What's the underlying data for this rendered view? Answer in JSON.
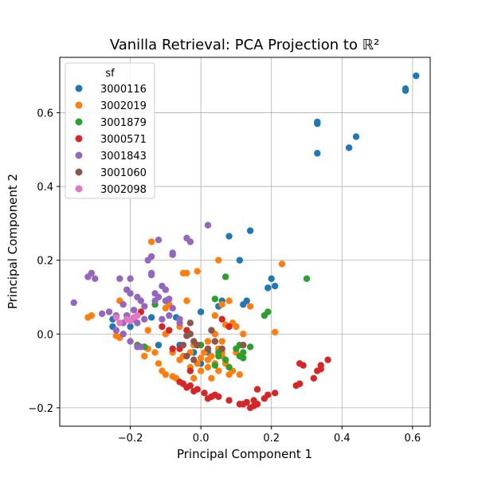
{
  "chart_data": {
    "type": "scatter",
    "title": "Vanilla Retrieval: PCA Projection to ℝ²",
    "xlabel": "Principal Component 1",
    "ylabel": "Principal Component 2",
    "xlim": [
      -0.4,
      0.65
    ],
    "ylim": [
      -0.25,
      0.75
    ],
    "xticks": [
      -0.2,
      0.0,
      0.2,
      0.4,
      0.6
    ],
    "xtick_labels": [
      "−0.2",
      "0.0",
      "0.2",
      "0.4",
      "0.6"
    ],
    "yticks": [
      -0.2,
      0.0,
      0.2,
      0.4,
      0.6
    ],
    "ytick_labels": [
      "−0.2",
      "0.0",
      "0.2",
      "0.4",
      "0.6"
    ],
    "grid": true,
    "legend": {
      "title": "sf",
      "placement": "top-left"
    },
    "series": [
      {
        "name": "3000116",
        "color": "#1f77b4",
        "points": [
          [
            0.61,
            0.7
          ],
          [
            0.58,
            0.665
          ],
          [
            0.58,
            0.66
          ],
          [
            0.33,
            0.57
          ],
          [
            0.33,
            0.575
          ],
          [
            0.44,
            0.535
          ],
          [
            0.42,
            0.505
          ],
          [
            0.33,
            0.49
          ],
          [
            0.14,
            0.28
          ],
          [
            0.08,
            0.265
          ],
          [
            0.11,
            0.2
          ],
          [
            0.2,
            0.15
          ],
          [
            0.21,
            0.13
          ],
          [
            0.19,
            0.125
          ],
          [
            0.06,
            0.09
          ],
          [
            0.13,
            0.09
          ],
          [
            0.05,
            0.075
          ],
          [
            0.12,
            0.08
          ],
          [
            0.0,
            0.06
          ],
          [
            -0.14,
            0.045
          ],
          [
            -0.07,
            0.045
          ],
          [
            -0.25,
            0.04
          ],
          [
            -0.25,
            0.02
          ],
          [
            -0.2,
            0.02
          ],
          [
            -0.12,
            -0.03
          ],
          [
            -0.06,
            -0.03
          ],
          [
            0.02,
            -0.05
          ],
          [
            -0.02,
            -0.05
          ],
          [
            0.0,
            -0.08
          ]
        ]
      },
      {
        "name": "3002019",
        "color": "#ff7f0e",
        "points": [
          [
            -0.14,
            0.25
          ],
          [
            0.23,
            0.19
          ],
          [
            0.05,
            0.2
          ],
          [
            -0.05,
            0.165
          ],
          [
            -0.04,
            0.165
          ],
          [
            -0.01,
            0.17
          ],
          [
            0.08,
            0.09
          ],
          [
            0.06,
            0.08
          ],
          [
            0.14,
            0.075
          ],
          [
            -0.1,
            0.07
          ],
          [
            -0.09,
            0.08
          ],
          [
            -0.04,
            0.09
          ],
          [
            0.04,
            0.05
          ],
          [
            -0.23,
            0.09
          ],
          [
            -0.32,
            0.045
          ],
          [
            -0.31,
            0.05
          ],
          [
            0.09,
            0.03
          ],
          [
            -0.06,
            0.02
          ],
          [
            0.07,
            0.025
          ],
          [
            0.1,
            0.02
          ],
          [
            -0.15,
            0.01
          ],
          [
            -0.1,
            0.0
          ],
          [
            0.04,
            0.0
          ],
          [
            0.12,
            0.0
          ],
          [
            0.21,
            0.005
          ],
          [
            -0.24,
            -0.005
          ],
          [
            -0.23,
            -0.01
          ],
          [
            0.02,
            -0.02
          ],
          [
            0.06,
            -0.02
          ],
          [
            -0.02,
            -0.03
          ],
          [
            0.05,
            -0.04
          ],
          [
            -0.13,
            -0.05
          ],
          [
            -0.08,
            -0.05
          ],
          [
            -0.03,
            -0.05
          ],
          [
            0.01,
            -0.05
          ],
          [
            0.03,
            -0.06
          ],
          [
            0.06,
            -0.06
          ],
          [
            0.1,
            -0.05
          ],
          [
            -0.16,
            -0.06
          ],
          [
            -0.06,
            -0.07
          ],
          [
            0.0,
            -0.065
          ],
          [
            0.02,
            -0.07
          ],
          [
            0.04,
            -0.08
          ],
          [
            0.07,
            -0.08
          ],
          [
            -0.03,
            -0.09
          ],
          [
            -0.01,
            -0.08
          ],
          [
            0.05,
            -0.1
          ],
          [
            0.09,
            -0.1
          ],
          [
            -0.11,
            -0.1
          ],
          [
            -0.1,
            -0.11
          ],
          [
            -0.08,
            -0.115
          ],
          [
            -0.07,
            -0.12
          ],
          [
            0.11,
            -0.11
          ],
          [
            0.08,
            -0.11
          ],
          [
            0.03,
            -0.12
          ],
          [
            -0.15,
            -0.04
          ],
          [
            -0.12,
            -0.08
          ],
          [
            0.0,
            -0.1
          ],
          [
            0.02,
            -0.09
          ],
          [
            0.06,
            -0.05
          ],
          [
            -0.05,
            -0.06
          ],
          [
            -0.02,
            -0.12
          ]
        ]
      },
      {
        "name": "3001879",
        "color": "#2ca02c",
        "points": [
          [
            0.3,
            0.15
          ],
          [
            0.07,
            0.155
          ],
          [
            0.19,
            0.06
          ],
          [
            0.18,
            0.05
          ],
          [
            0.04,
            0.095
          ],
          [
            -0.13,
            0.08
          ],
          [
            0.11,
            -0.03
          ],
          [
            0.14,
            -0.035
          ],
          [
            0.12,
            -0.05
          ],
          [
            0.11,
            -0.06
          ],
          [
            0.1,
            -0.04
          ],
          [
            0.05,
            -0.06
          ],
          [
            0.07,
            -0.07
          ],
          [
            0.04,
            -0.085
          ],
          [
            0.08,
            -0.09
          ],
          [
            -0.18,
            -0.03
          ],
          [
            -0.16,
            -0.035
          ],
          [
            -0.01,
            -0.03
          ],
          [
            0.0,
            -0.03
          ],
          [
            0.12,
            -0.065
          ],
          [
            0.05,
            -0.05
          ]
        ]
      },
      {
        "name": "3000571",
        "color": "#d62728",
        "points": [
          [
            0.36,
            -0.07
          ],
          [
            0.34,
            -0.085
          ],
          [
            0.34,
            -0.095
          ],
          [
            0.33,
            -0.1
          ],
          [
            0.29,
            -0.085
          ],
          [
            0.28,
            -0.08
          ],
          [
            0.32,
            -0.12
          ],
          [
            0.28,
            -0.135
          ],
          [
            0.27,
            -0.14
          ],
          [
            0.21,
            -0.16
          ],
          [
            0.19,
            -0.165
          ],
          [
            0.18,
            -0.175
          ],
          [
            0.16,
            -0.19
          ],
          [
            0.15,
            -0.18
          ],
          [
            0.13,
            -0.185
          ],
          [
            0.12,
            -0.19
          ],
          [
            0.11,
            -0.19
          ],
          [
            0.14,
            -0.2
          ],
          [
            0.15,
            -0.195
          ],
          [
            0.16,
            -0.15
          ],
          [
            0.08,
            -0.18
          ],
          [
            0.05,
            -0.17
          ],
          [
            0.04,
            -0.165
          ],
          [
            0.03,
            -0.17
          ],
          [
            0.02,
            -0.175
          ],
          [
            0.01,
            -0.16
          ],
          [
            -0.01,
            -0.15
          ],
          [
            -0.02,
            -0.155
          ],
          [
            -0.03,
            -0.14
          ],
          [
            -0.05,
            -0.135
          ],
          [
            -0.04,
            -0.145
          ],
          [
            -0.06,
            -0.13
          ],
          [
            -0.03,
            -0.1
          ],
          [
            -0.11,
            0.02
          ],
          [
            -0.09,
            0.01
          ],
          [
            -0.04,
            0.01
          ],
          [
            -0.08,
            -0.04
          ],
          [
            -0.06,
            -0.04
          ],
          [
            0.06,
            0.04
          ],
          [
            0.08,
            0.02
          ],
          [
            -0.17,
            0.06
          ]
        ]
      },
      {
        "name": "3001843",
        "color": "#9467bd",
        "points": [
          [
            0.02,
            0.295
          ],
          [
            -0.04,
            0.26
          ],
          [
            -0.03,
            0.25
          ],
          [
            -0.12,
            0.255
          ],
          [
            -0.08,
            0.22
          ],
          [
            -0.08,
            0.215
          ],
          [
            -0.14,
            0.21
          ],
          [
            -0.15,
            0.2
          ],
          [
            -0.2,
            0.15
          ],
          [
            -0.23,
            0.15
          ],
          [
            -0.31,
            0.165
          ],
          [
            -0.3,
            0.15
          ],
          [
            -0.32,
            0.155
          ],
          [
            -0.14,
            0.16
          ],
          [
            -0.14,
            0.165
          ],
          [
            -0.11,
            0.13
          ],
          [
            -0.13,
            0.11
          ],
          [
            -0.1,
            0.12
          ],
          [
            -0.18,
            0.1
          ],
          [
            -0.2,
            0.11
          ],
          [
            -0.21,
            0.12
          ],
          [
            -0.12,
            0.1
          ],
          [
            -0.17,
            0.09
          ],
          [
            -0.19,
            0.065
          ],
          [
            -0.22,
            0.08
          ],
          [
            -0.24,
            0.05
          ],
          [
            -0.26,
            0.06
          ],
          [
            -0.28,
            0.055
          ],
          [
            -0.36,
            0.085
          ],
          [
            -0.21,
            0.05
          ],
          [
            -0.19,
            0.04
          ],
          [
            -0.18,
            0.03
          ],
          [
            -0.16,
            0.04
          ],
          [
            -0.17,
            -0.035
          ],
          [
            -0.18,
            -0.035
          ],
          [
            -0.11,
            0.04
          ],
          [
            -0.06,
            0.04
          ],
          [
            -0.06,
            0.03
          ],
          [
            -0.08,
            0.07
          ],
          [
            -0.09,
            0.095
          ],
          [
            -0.1,
            0.09
          ],
          [
            -0.13,
            0.09
          ],
          [
            -0.16,
            0.075
          ],
          [
            -0.22,
            0.03
          ],
          [
            -0.22,
            0.0
          ],
          [
            -0.24,
            0.01
          ],
          [
            -0.2,
            -0.02
          ],
          [
            -0.09,
            0.05
          ]
        ]
      },
      {
        "name": "3001060",
        "color": "#8c564b",
        "points": [
          [
            -0.03,
            0.0
          ],
          [
            -0.04,
            -0.005
          ],
          [
            -0.02,
            -0.02
          ],
          [
            -0.01,
            -0.03
          ],
          [
            0.04,
            -0.02
          ],
          [
            -0.04,
            -0.06
          ],
          [
            -0.02,
            -0.07
          ],
          [
            0.03,
            0.01
          ],
          [
            -0.03,
            0.03
          ],
          [
            0.12,
            -0.03
          ],
          [
            0.06,
            -0.04
          ],
          [
            0.02,
            -0.04
          ],
          [
            -0.05,
            -0.03
          ]
        ]
      },
      {
        "name": "3002098",
        "color": "#e377c2",
        "points": [
          [
            -0.24,
            0.045
          ],
          [
            -0.21,
            0.04
          ],
          [
            -0.19,
            0.045
          ],
          [
            -0.18,
            0.05
          ],
          [
            -0.23,
            0.03
          ],
          [
            -0.2,
            0.035
          ]
        ]
      }
    ]
  }
}
